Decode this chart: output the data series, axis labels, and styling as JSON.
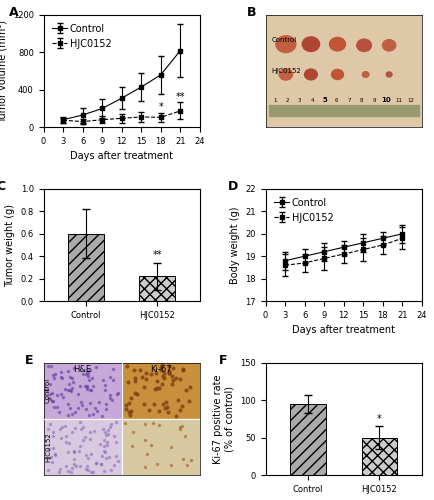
{
  "panel_A": {
    "days": [
      3,
      6,
      9,
      12,
      15,
      18,
      21
    ],
    "control_mean": [
      80,
      130,
      200,
      310,
      430,
      560,
      820
    ],
    "control_err": [
      30,
      80,
      100,
      120,
      150,
      200,
      280
    ],
    "hjc_mean": [
      75,
      60,
      80,
      95,
      110,
      105,
      175
    ],
    "hjc_err": [
      25,
      30,
      40,
      45,
      50,
      45,
      90
    ],
    "xlabel": "Days after treatment",
    "ylabel": "Tumor volume (mm³)",
    "xlim": [
      0,
      24
    ],
    "ylim": [
      0,
      1200
    ],
    "yticks": [
      0,
      400,
      800,
      1200
    ],
    "xticks": [
      0,
      3,
      6,
      9,
      12,
      15,
      18,
      21,
      24
    ],
    "sig_days": [
      18,
      21
    ]
  },
  "panel_C": {
    "categories": [
      "Control",
      "HJC0152"
    ],
    "means": [
      0.6,
      0.22
    ],
    "errors": [
      0.22,
      0.12
    ],
    "ylabel": "Tumor weight (g)",
    "ylim": [
      0,
      1.0
    ],
    "yticks": [
      0.0,
      0.2,
      0.4,
      0.6,
      0.8,
      1.0
    ]
  },
  "panel_D": {
    "days": [
      3,
      6,
      9,
      12,
      15,
      18,
      21
    ],
    "control_mean": [
      18.8,
      19.0,
      19.2,
      19.4,
      19.6,
      19.8,
      20.0
    ],
    "control_err": [
      0.4,
      0.3,
      0.4,
      0.3,
      0.4,
      0.3,
      0.4
    ],
    "hjc_mean": [
      18.6,
      18.7,
      18.9,
      19.1,
      19.3,
      19.5,
      19.8
    ],
    "hjc_err": [
      0.5,
      0.4,
      0.5,
      0.4,
      0.5,
      0.4,
      0.5
    ],
    "xlabel": "Days after treatment",
    "ylabel": "Body weight (g)",
    "xlim": [
      0,
      24
    ],
    "ylim": [
      17,
      22
    ],
    "yticks": [
      17,
      18,
      19,
      20,
      21,
      22
    ],
    "xticks": [
      0,
      3,
      6,
      9,
      12,
      15,
      18,
      21,
      24
    ]
  },
  "panel_F": {
    "categories": [
      "Control",
      "HJC0152"
    ],
    "means": [
      95,
      50
    ],
    "errors": [
      12,
      15
    ],
    "ylabel": "Ki-67 positive rate\n(% of control)",
    "ylim": [
      0,
      150
    ],
    "yticks": [
      0,
      50,
      100,
      150
    ]
  },
  "colors": {
    "background": "#ffffff"
  },
  "label_fontsize": 7,
  "tick_fontsize": 6,
  "legend_fontsize": 7
}
